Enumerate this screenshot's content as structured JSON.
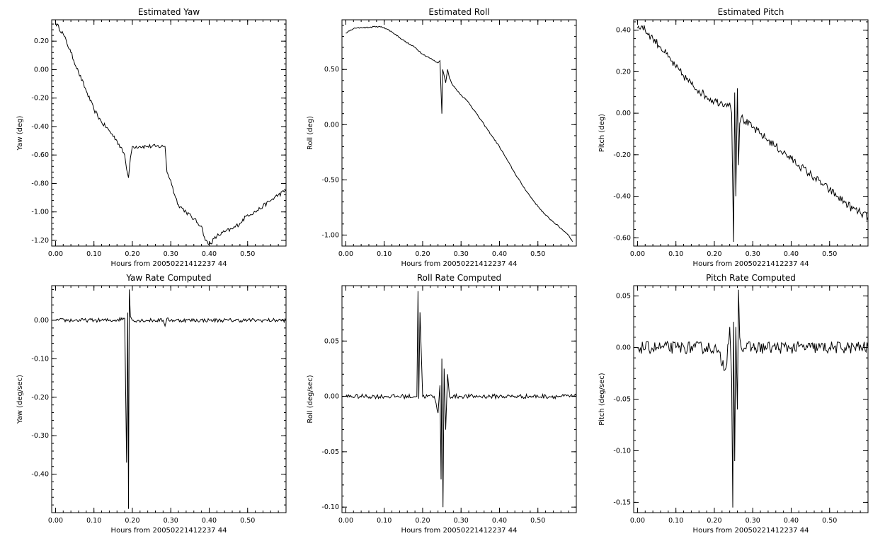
{
  "chart_data": [
    {
      "type": "line",
      "title": "Estimated Yaw",
      "xlabel": "Hours from 20050221412237 44",
      "ylabel": "Yaw (deg)",
      "xlim": [
        -0.01,
        0.6
      ],
      "ylim": [
        -1.24,
        0.35
      ],
      "xticks": [
        "0.00",
        "0.10",
        "0.20",
        "0.30",
        "0.40",
        "0.50"
      ],
      "yticks": [
        "-1.20",
        "-1.00",
        "-0.80",
        "-0.60",
        "-0.40",
        "-0.20",
        "0.00",
        "0.20"
      ],
      "series": [
        {
          "x": [
            0.0,
            0.02,
            0.04,
            0.06,
            0.08,
            0.1,
            0.12,
            0.14,
            0.16,
            0.18,
            0.185,
            0.19,
            0.195,
            0.2,
            0.22,
            0.24,
            0.26,
            0.28,
            0.285,
            0.29,
            0.3,
            0.31,
            0.32,
            0.34,
            0.36,
            0.38,
            0.39,
            0.4,
            0.42,
            0.44,
            0.46,
            0.48,
            0.5,
            0.52,
            0.54,
            0.56,
            0.58,
            0.6
          ],
          "y": [
            0.33,
            0.25,
            0.12,
            -0.02,
            -0.15,
            -0.28,
            -0.37,
            -0.43,
            -0.5,
            -0.6,
            -0.7,
            -0.76,
            -0.62,
            -0.54,
            -0.54,
            -0.54,
            -0.54,
            -0.54,
            -0.54,
            -0.72,
            -0.78,
            -0.88,
            -0.95,
            -1.0,
            -1.05,
            -1.1,
            -1.2,
            -1.23,
            -1.17,
            -1.14,
            -1.12,
            -1.08,
            -1.02,
            -1.0,
            -0.96,
            -0.92,
            -0.88,
            -0.85
          ],
          "noise": 0.015
        }
      ]
    },
    {
      "type": "line",
      "title": "Estimated Roll",
      "xlabel": "Hours from 20050221412237 44",
      "ylabel": "Roll (deg)",
      "xlim": [
        -0.01,
        0.6
      ],
      "ylim": [
        -1.1,
        0.95
      ],
      "xticks": [
        "0.00",
        "0.10",
        "0.20",
        "0.30",
        "0.40",
        "0.50"
      ],
      "yticks": [
        "-1.00",
        "-0.50",
        "0.00",
        "0.50"
      ],
      "series": [
        {
          "x": [
            0.0,
            0.02,
            0.04,
            0.06,
            0.08,
            0.1,
            0.12,
            0.14,
            0.16,
            0.18,
            0.2,
            0.22,
            0.24,
            0.245,
            0.25,
            0.252,
            0.255,
            0.26,
            0.265,
            0.27,
            0.28,
            0.3,
            0.32,
            0.34,
            0.36,
            0.38,
            0.4,
            0.42,
            0.44,
            0.46,
            0.48,
            0.5,
            0.52,
            0.54,
            0.56,
            0.58,
            0.59
          ],
          "y": [
            0.83,
            0.87,
            0.88,
            0.88,
            0.89,
            0.88,
            0.84,
            0.79,
            0.74,
            0.7,
            0.64,
            0.6,
            0.56,
            0.58,
            0.1,
            0.5,
            0.46,
            0.38,
            0.5,
            0.42,
            0.35,
            0.27,
            0.2,
            0.1,
            0.0,
            -0.1,
            -0.2,
            -0.32,
            -0.44,
            -0.55,
            -0.65,
            -0.74,
            -0.82,
            -0.88,
            -0.94,
            -1.0,
            -1.06
          ],
          "noise": 0.006
        }
      ]
    },
    {
      "type": "line",
      "title": "Estimated Pitch",
      "xlabel": "Hours from 20050221412237 44",
      "ylabel": "Pitch (deg)",
      "xlim": [
        -0.01,
        0.6
      ],
      "ylim": [
        -0.64,
        0.45
      ],
      "xticks": [
        "0.00",
        "0.10",
        "0.20",
        "0.30",
        "0.40",
        "0.50"
      ],
      "yticks": [
        "-0.60",
        "-0.40",
        "-0.20",
        "0.00",
        "0.20",
        "0.40"
      ],
      "series": [
        {
          "x": [
            0.0,
            0.01,
            0.02,
            0.04,
            0.06,
            0.08,
            0.1,
            0.12,
            0.14,
            0.16,
            0.18,
            0.2,
            0.22,
            0.24,
            0.245,
            0.25,
            0.253,
            0.256,
            0.26,
            0.263,
            0.266,
            0.27,
            0.28,
            0.3,
            0.32,
            0.34,
            0.36,
            0.38,
            0.4,
            0.42,
            0.44,
            0.46,
            0.48,
            0.5,
            0.52,
            0.54,
            0.56,
            0.58,
            0.6
          ],
          "y": [
            0.41,
            0.42,
            0.4,
            0.36,
            0.32,
            0.27,
            0.22,
            0.18,
            0.14,
            0.11,
            0.08,
            0.06,
            0.05,
            0.05,
            0.0,
            -0.62,
            0.1,
            -0.4,
            0.12,
            -0.25,
            -0.05,
            -0.02,
            -0.04,
            -0.07,
            -0.1,
            -0.13,
            -0.16,
            -0.19,
            -0.22,
            -0.25,
            -0.28,
            -0.31,
            -0.34,
            -0.37,
            -0.4,
            -0.43,
            -0.46,
            -0.48,
            -0.5
          ],
          "noise": 0.02
        }
      ]
    },
    {
      "type": "line",
      "title": "Yaw Rate Computed",
      "xlabel": "Hours from 20050221412237 44",
      "ylabel": "Yaw (deg/sec)",
      "xlim": [
        -0.01,
        0.6
      ],
      "ylim": [
        -0.5,
        0.09
      ],
      "xticks": [
        "0.00",
        "0.10",
        "0.20",
        "0.30",
        "0.40",
        "0.50"
      ],
      "yticks": [
        "-0.40",
        "-0.30",
        "-0.20",
        "-0.10",
        "0.00"
      ],
      "series": [
        {
          "x": [
            0.0,
            0.05,
            0.1,
            0.15,
            0.18,
            0.185,
            0.188,
            0.19,
            0.192,
            0.195,
            0.2,
            0.25,
            0.28,
            0.285,
            0.29,
            0.3,
            0.35,
            0.4,
            0.45,
            0.5,
            0.55,
            0.6
          ],
          "y": [
            0.0,
            0.0,
            0.0,
            0.0,
            0.005,
            -0.37,
            0.02,
            -0.49,
            0.08,
            0.01,
            0.0,
            0.0,
            0.0,
            -0.015,
            0.005,
            0.0,
            0.0,
            0.0,
            0.0,
            0.0,
            0.0,
            0.0
          ],
          "noise": 0.005
        }
      ]
    },
    {
      "type": "line",
      "title": "Roll Rate Computed",
      "xlabel": "Hours from 20050221412237 44",
      "ylabel": "Roll (deg/sec)",
      "xlim": [
        -0.01,
        0.6
      ],
      "ylim": [
        -0.105,
        0.1
      ],
      "xticks": [
        "0.00",
        "0.10",
        "0.20",
        "0.30",
        "0.40",
        "0.50"
      ],
      "yticks": [
        "-0.10",
        "-0.05",
        "0.00",
        "0.05"
      ],
      "series": [
        {
          "x": [
            0.0,
            0.05,
            0.1,
            0.15,
            0.185,
            0.188,
            0.19,
            0.193,
            0.2,
            0.23,
            0.24,
            0.245,
            0.248,
            0.25,
            0.253,
            0.256,
            0.26,
            0.265,
            0.27,
            0.3,
            0.35,
            0.4,
            0.45,
            0.5,
            0.55,
            0.6
          ],
          "y": [
            0.0,
            0.0,
            0.0,
            0.0,
            0.0,
            0.095,
            -0.002,
            0.076,
            0.0,
            0.0,
            -0.015,
            0.01,
            -0.075,
            0.034,
            -0.1,
            0.025,
            -0.03,
            0.02,
            0.0,
            0.0,
            0.0,
            0.0,
            0.0,
            0.0,
            0.0,
            0.0
          ],
          "noise": 0.002
        }
      ]
    },
    {
      "type": "line",
      "title": "Pitch Rate Computed",
      "xlabel": "Hours from 20050221412237 44",
      "ylabel": "Pitch (deg/sec)",
      "xlim": [
        -0.01,
        0.6
      ],
      "ylim": [
        -0.16,
        0.06
      ],
      "xticks": [
        "0.00",
        "0.10",
        "0.20",
        "0.30",
        "0.40",
        "0.50"
      ],
      "yticks": [
        "-0.15",
        "-0.10",
        "-0.05",
        "0.00",
        "0.05"
      ],
      "series": [
        {
          "x": [
            0.0,
            0.05,
            0.1,
            0.15,
            0.2,
            0.23,
            0.24,
            0.245,
            0.248,
            0.25,
            0.253,
            0.256,
            0.26,
            0.263,
            0.266,
            0.27,
            0.3,
            0.35,
            0.4,
            0.45,
            0.5,
            0.55,
            0.6
          ],
          "y": [
            0.0,
            0.0,
            0.0,
            0.0,
            0.0,
            -0.02,
            0.02,
            -0.03,
            -0.155,
            0.025,
            -0.11,
            0.02,
            -0.06,
            0.056,
            0.01,
            0.0,
            0.0,
            0.0,
            0.0,
            0.0,
            0.0,
            0.0,
            0.0
          ],
          "noise": 0.006
        }
      ]
    }
  ]
}
